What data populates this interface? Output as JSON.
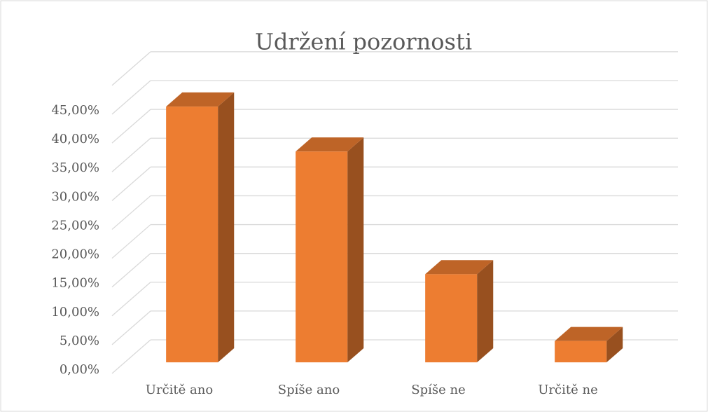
{
  "chart_data": {
    "type": "bar3d",
    "title": "Udržení pozornosti",
    "categories": [
      "Určitě ano",
      "Spíše ano",
      "Spíše ne",
      "Určitě ne"
    ],
    "values": [
      44.4,
      36.6,
      15.3,
      3.7
    ],
    "color": "#ed7d31",
    "ylim": [
      0,
      50
    ],
    "yticks": [
      {
        "value": 0,
        "label": "0,00%"
      },
      {
        "value": 5,
        "label": "5,00%"
      },
      {
        "value": 10,
        "label": "10,00%"
      },
      {
        "value": 15,
        "label": "15,00%"
      },
      {
        "value": 20,
        "label": "20,00%"
      },
      {
        "value": 25,
        "label": "25,00%"
      },
      {
        "value": 30,
        "label": "30,00%"
      },
      {
        "value": 35,
        "label": "35,00%"
      },
      {
        "value": 40,
        "label": "40,00%"
      },
      {
        "value": 45,
        "label": "45,00%"
      }
    ],
    "grid": true
  }
}
